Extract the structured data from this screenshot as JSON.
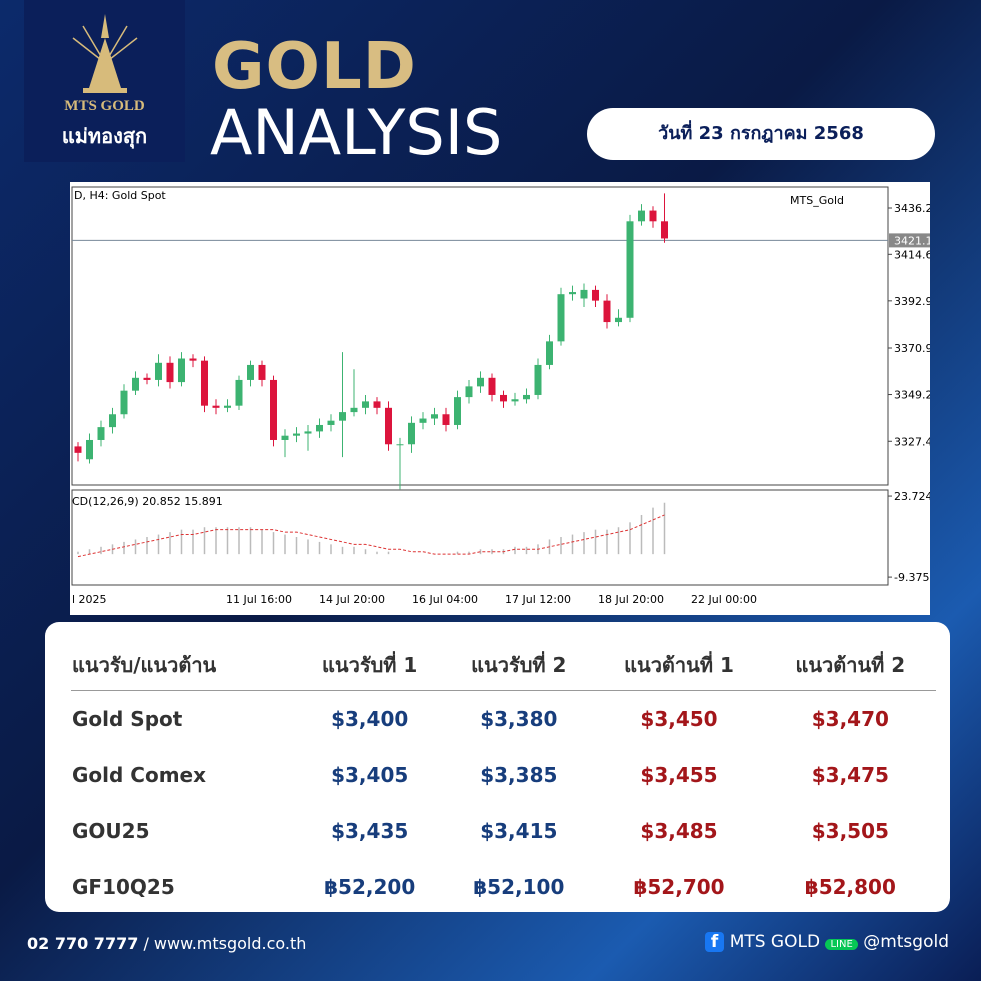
{
  "header": {
    "logo_name": "MTS GOLD",
    "logo_thai": "แม่ทองสุก",
    "title_1": "GOLD",
    "title_2": "ANALYSIS",
    "date": "วันที่ 23 กรกฎาคม 2568"
  },
  "chart_data": {
    "type": "candlestick",
    "title": "D, H4:  Gold Spot",
    "watermark": "MTS_Gold",
    "x_labels": [
      "l 2025",
      "11 Jul 16:00",
      "14 Jul 20:00",
      "16 Jul 04:00",
      "17 Jul 12:00",
      "18 Jul 20:00",
      "22 Jul 00:00"
    ],
    "open": [
      3325,
      3319,
      3328,
      3334,
      3340,
      3351,
      3357,
      3356,
      3364,
      3355,
      3366,
      3365,
      3344,
      3343,
      3344,
      3356,
      3363,
      3356,
      3328,
      3330,
      3331,
      3332,
      3335,
      3337,
      3341,
      3343,
      3346,
      3343,
      3326,
      3326,
      3336,
      3338,
      3340,
      3335,
      3348,
      3353,
      3357,
      3349,
      3346,
      3347,
      3349,
      3363,
      3374,
      3396,
      3394,
      3398,
      3393,
      3383,
      3385,
      3430,
      3435,
      3430
    ],
    "high": [
      3327,
      3331,
      3337,
      3343,
      3354,
      3360,
      3359,
      3368,
      3367,
      3369,
      3368,
      3367,
      3347,
      3347,
      3358,
      3365,
      3365,
      3358,
      3333,
      3334,
      3335,
      3338,
      3340,
      3369,
      3361,
      3349,
      3348,
      3346,
      3329,
      3339,
      3341,
      3343,
      3343,
      3351,
      3356,
      3360,
      3359,
      3351,
      3350,
      3352,
      3366,
      3377,
      3399,
      3400,
      3401,
      3400,
      3396,
      3389,
      3433,
      3438,
      3437,
      3443
    ],
    "low": [
      3318,
      3317,
      3325,
      3331,
      3338,
      3349,
      3354,
      3353,
      3352,
      3353,
      3362,
      3341,
      3340,
      3341,
      3342,
      3353,
      3353,
      3325,
      3320,
      3327,
      3323,
      3329,
      3332,
      3320,
      3339,
      3340,
      3340,
      3323,
      3305,
      3322,
      3333,
      3335,
      3332,
      3333,
      3345,
      3350,
      3346,
      3343,
      3344,
      3345,
      3347,
      3361,
      3372,
      3393,
      3390,
      3390,
      3380,
      3381,
      3383,
      3428,
      3427,
      3420
    ],
    "close": [
      3322,
      3328,
      3334,
      3340,
      3351,
      3357,
      3356,
      3364,
      3355,
      3366,
      3365,
      3344,
      3343,
      3344,
      3356,
      3363,
      3356,
      3328,
      3330,
      3331,
      3332,
      3335,
      3337,
      3341,
      3343,
      3346,
      3343,
      3326,
      3326,
      3336,
      3338,
      3340,
      3335,
      3348,
      3353,
      3357,
      3349,
      3346,
      3347,
      3349,
      3363,
      3374,
      3396,
      3397,
      3398,
      3393,
      3383,
      3385,
      3430,
      3435,
      3430,
      3422
    ],
    "up_color": "#3cb371",
    "down_color": "#dc143c",
    "ylim": [
      3307,
      3446
    ],
    "yticks": [
      3436.2,
      3414.6,
      3392.9,
      3370.9,
      3349.2,
      3327.4
    ],
    "current_price": 3421.1,
    "indicator": {
      "label": "CD(12,26,9) 20.852 15.891",
      "ylim": [
        -12.6,
        26.2
      ],
      "yticks": [
        23.724,
        -9.375
      ],
      "histogram": [
        1,
        2,
        3,
        4,
        5,
        6,
        7,
        8,
        9,
        10,
        10,
        11,
        11,
        11,
        11,
        11,
        10,
        9,
        8,
        7,
        6,
        5,
        4,
        3,
        3,
        2,
        1,
        1,
        0,
        0,
        0,
        0,
        0,
        1,
        1,
        2,
        2,
        2,
        3,
        3,
        4,
        6,
        7,
        8,
        9,
        10,
        10,
        11,
        13,
        16,
        19,
        21
      ],
      "signal": [
        -1,
        0,
        1,
        2,
        3,
        4,
        5,
        6,
        7,
        8,
        8,
        9,
        10,
        10,
        10,
        10,
        10,
        10,
        9,
        9,
        8,
        7,
        6,
        5,
        4,
        4,
        3,
        2,
        2,
        1,
        1,
        0,
        0,
        0,
        0,
        1,
        1,
        1,
        2,
        2,
        2,
        3,
        4,
        5,
        6,
        7,
        8,
        9,
        10,
        12,
        14,
        16
      ]
    }
  },
  "table": {
    "header": [
      "แนวรับ/แนวต้าน",
      "แนวรับที่ 1",
      "แนวรับที่ 2",
      "แนวต้านที่ 1",
      "แนวต้านที่ 2"
    ],
    "rows": [
      [
        "Gold Spot",
        "$3,400",
        "$3,380",
        "$3,450",
        "$3,470"
      ],
      [
        "Gold Comex",
        "$3,405",
        "$3,385",
        "$3,455",
        "$3,475"
      ],
      [
        "GOU25",
        "$3,435",
        "$3,415",
        "$3,485",
        "$3,505"
      ],
      [
        "GF10Q25",
        "฿52,200",
        "฿52,100",
        "฿52,700",
        "฿52,800"
      ]
    ]
  },
  "footer": {
    "phone": "02 770 7777",
    "web": "/ www.mtsgold.co.th",
    "facebook": "MTS GOLD",
    "line": "@mtsgold"
  }
}
